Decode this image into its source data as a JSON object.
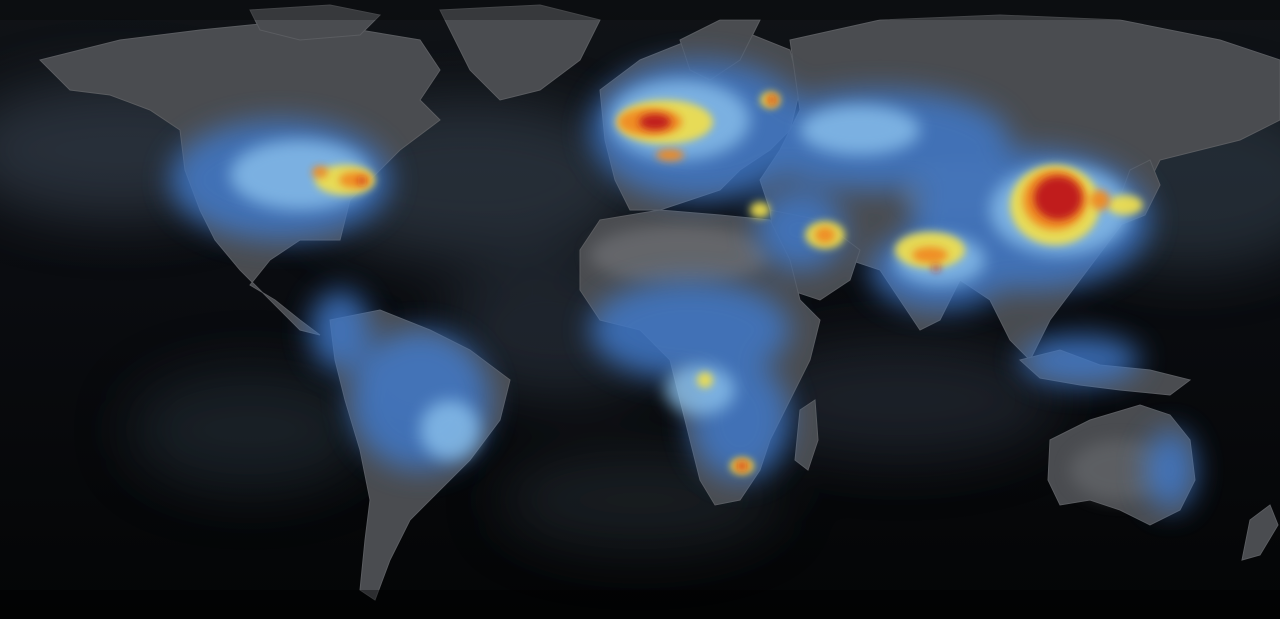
{
  "map": {
    "projection": "equirectangular",
    "theme": "dark",
    "colors": {
      "ocean": "#07090c",
      "ocean_haze": "#3a4a5c",
      "land": "#4a4c50",
      "land_light": "#6a6c70",
      "intensity_low": "#3f78c8",
      "intensity_mid_low": "#8fc6f0",
      "intensity_mid": "#f3e04a",
      "intensity_high": "#f08a24",
      "intensity_peak": "#c01e1e"
    },
    "heat_regions": [
      {
        "name": "europe",
        "intensity": "peak"
      },
      {
        "name": "north-china-plain",
        "intensity": "peak"
      },
      {
        "name": "eastern-united-states",
        "intensity": "high"
      },
      {
        "name": "northern-india",
        "intensity": "high"
      },
      {
        "name": "persian-gulf",
        "intensity": "high"
      },
      {
        "name": "south-africa-highveld",
        "intensity": "high"
      },
      {
        "name": "japan-korea",
        "intensity": "high"
      },
      {
        "name": "moscow",
        "intensity": "high"
      },
      {
        "name": "nile-delta",
        "intensity": "high"
      },
      {
        "name": "west-africa",
        "intensity": "mid"
      },
      {
        "name": "southeast-asia",
        "intensity": "mid"
      },
      {
        "name": "south-america-east",
        "intensity": "mid"
      },
      {
        "name": "australia-east",
        "intensity": "low"
      }
    ]
  }
}
